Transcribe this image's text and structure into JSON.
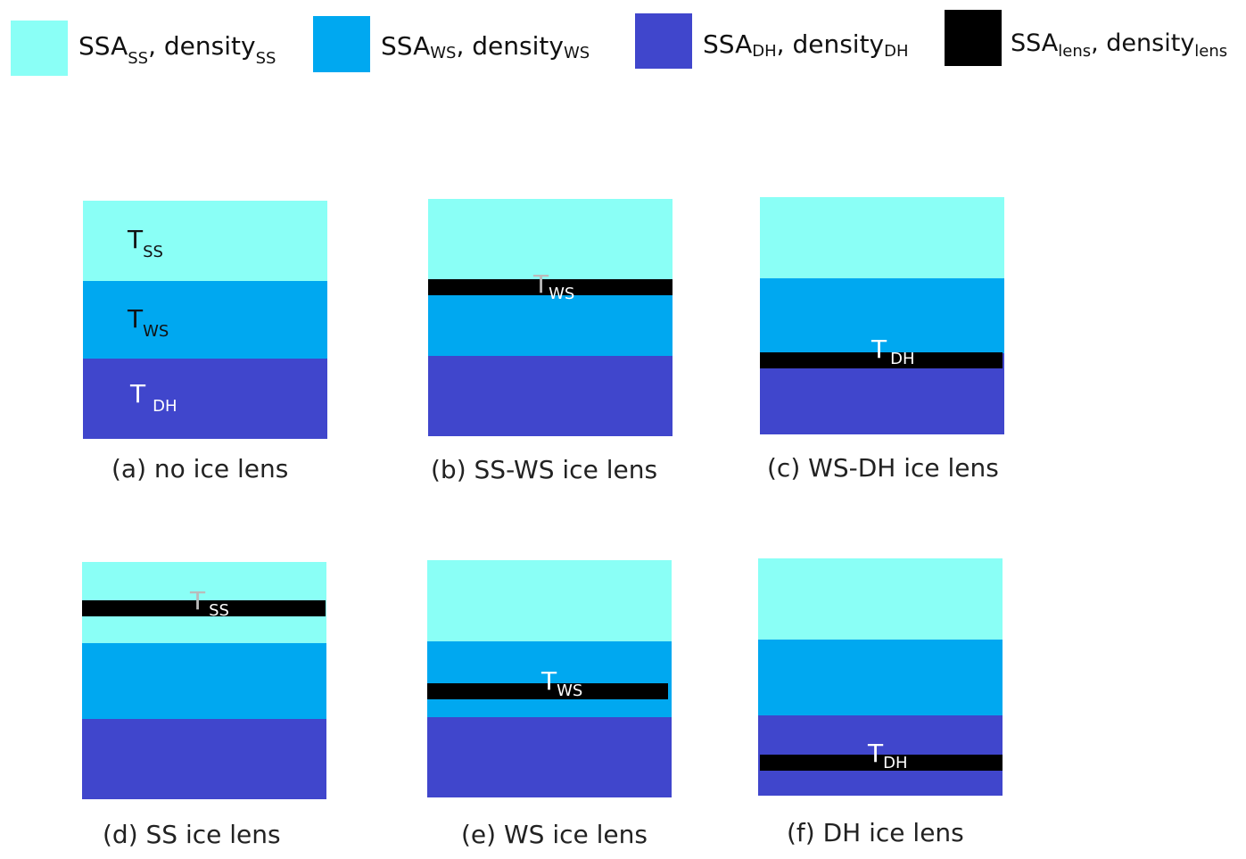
{
  "colors": {
    "ss": "#8afff6",
    "ws": "#00a8f0",
    "dh": "#4046cc",
    "lens": "#000000",
    "label_dark": "#111111",
    "label_light": "#ffffff",
    "label_gray": "#bbbbbb"
  },
  "legend": [
    {
      "ssa": "SSA",
      "ssa_sub": "SS",
      "sep": ", ",
      "density": "density",
      "density_sub": "SS"
    },
    {
      "ssa": "SSA",
      "ssa_sub": "WS",
      "sep": ", ",
      "density": "density",
      "density_sub": "WS"
    },
    {
      "ssa": "SSA",
      "ssa_sub": "DH",
      "sep": ", ",
      "density": "density",
      "density_sub": "DH"
    },
    {
      "ssa": "SSA",
      "ssa_sub": "lens",
      "sep": ", ",
      "density": "density",
      "density_sub": "lens"
    }
  ],
  "panels": [
    {
      "caption": "(a) no ice lens",
      "labels": [
        {
          "main": "T",
          "sub": "SS"
        },
        {
          "main": "T",
          "sub": "WS"
        },
        {
          "main": "T",
          "sub": "DH"
        }
      ]
    },
    {
      "caption": "(b) SS-WS ice lens",
      "labels": [
        {
          "main": "T",
          "sub": "WS"
        }
      ]
    },
    {
      "caption": "(c) WS-DH ice lens",
      "labels": [
        {
          "main": "T",
          "sub": "DH"
        }
      ]
    },
    {
      "caption": "(d) SS ice lens",
      "labels": [
        {
          "main": "T",
          "sub": "SS"
        }
      ]
    },
    {
      "caption": "(e) WS ice lens",
      "labels": [
        {
          "main": "T",
          "sub": "WS"
        }
      ]
    },
    {
      "caption": "(f) DH ice lens",
      "labels": [
        {
          "main": "T",
          "sub": "DH"
        }
      ]
    }
  ]
}
